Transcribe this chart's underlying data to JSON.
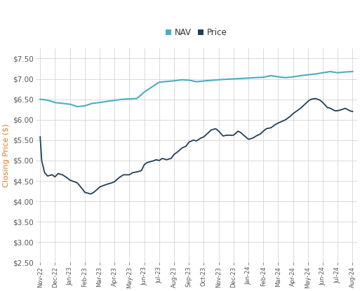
{
  "title": "",
  "ylabel": "Closing Price ($)",
  "nav_color": "#4BACC6",
  "price_color": "#1F3F5A",
  "background_color": "#FFFFFF",
  "grid_color": "#CCCCCC",
  "ylim": [
    2.5,
    7.75
  ],
  "yticks": [
    2.5,
    3.0,
    3.5,
    4.0,
    4.5,
    5.0,
    5.5,
    6.0,
    6.5,
    7.0,
    7.5
  ],
  "xtick_labels": [
    "Nov-22",
    "Dec-22",
    "Jan-23",
    "Feb-23",
    "Mar-23",
    "Apr-23",
    "May-23",
    "Jun-23",
    "Jul-23",
    "Aug-23",
    "Sep-23",
    "Oct-23",
    "Nov-23",
    "Dec-23",
    "Jan-24",
    "Feb-24",
    "Mar-24",
    "Apr-24",
    "May-24",
    "Jun-24",
    "Jul-24",
    "Aug-24"
  ],
  "nav_keypoints_x": [
    0,
    0.5,
    1.0,
    1.5,
    2.0,
    2.5,
    3.0,
    3.5,
    4.0,
    4.5,
    5.5,
    6.5,
    7.0,
    7.5,
    8.0,
    9.0,
    9.5,
    10.0,
    10.5,
    11.0,
    12.0,
    13.0,
    14.0,
    15.0,
    15.5,
    16.0,
    16.5,
    17.0,
    17.5,
    18.0,
    18.5,
    19.0,
    19.5,
    20.0,
    20.5,
    21.0
  ],
  "nav_keypoints_y": [
    6.5,
    6.48,
    6.42,
    6.4,
    6.38,
    6.32,
    6.34,
    6.4,
    6.42,
    6.45,
    6.5,
    6.52,
    6.68,
    6.8,
    6.92,
    6.95,
    6.98,
    6.97,
    6.93,
    6.95,
    6.98,
    7.0,
    7.02,
    7.04,
    7.08,
    7.05,
    7.03,
    7.05,
    7.08,
    7.1,
    7.12,
    7.15,
    7.18,
    7.15,
    7.17,
    7.18
  ],
  "price_keypoints_x": [
    0,
    0.1,
    0.3,
    0.5,
    0.8,
    1.0,
    1.2,
    1.5,
    1.8,
    2.0,
    2.3,
    2.5,
    2.8,
    3.0,
    3.2,
    3.4,
    3.6,
    3.8,
    4.0,
    4.2,
    4.5,
    4.8,
    5.0,
    5.3,
    5.6,
    6.0,
    6.2,
    6.5,
    6.8,
    7.0,
    7.2,
    7.5,
    7.8,
    8.0,
    8.2,
    8.5,
    8.8,
    9.0,
    9.2,
    9.5,
    9.8,
    10.0,
    10.3,
    10.5,
    10.8,
    11.0,
    11.3,
    11.5,
    11.8,
    12.0,
    12.3,
    12.5,
    12.8,
    13.0,
    13.3,
    13.5,
    13.8,
    14.0,
    14.3,
    14.5,
    14.8,
    15.0,
    15.2,
    15.5,
    15.8,
    16.0,
    16.2,
    16.5,
    16.8,
    17.0,
    17.2,
    17.5,
    17.8,
    18.0,
    18.2,
    18.5,
    18.8,
    19.0,
    19.3,
    19.5,
    19.8,
    20.0,
    20.3,
    20.5,
    20.8,
    21.0
  ],
  "price_keypoints_y": [
    5.58,
    5.0,
    4.7,
    4.62,
    4.65,
    4.6,
    4.68,
    4.65,
    4.58,
    4.52,
    4.48,
    4.45,
    4.32,
    4.22,
    4.2,
    4.18,
    4.22,
    4.28,
    4.35,
    4.38,
    4.42,
    4.45,
    4.48,
    4.58,
    4.65,
    4.65,
    4.7,
    4.72,
    4.75,
    4.9,
    4.95,
    4.98,
    5.02,
    5.0,
    5.05,
    5.02,
    5.05,
    5.15,
    5.2,
    5.3,
    5.35,
    5.45,
    5.5,
    5.48,
    5.55,
    5.58,
    5.68,
    5.75,
    5.78,
    5.72,
    5.6,
    5.62,
    5.62,
    5.62,
    5.72,
    5.68,
    5.58,
    5.52,
    5.55,
    5.6,
    5.65,
    5.72,
    5.78,
    5.8,
    5.88,
    5.92,
    5.95,
    6.0,
    6.08,
    6.15,
    6.2,
    6.28,
    6.38,
    6.45,
    6.5,
    6.52,
    6.48,
    6.42,
    6.3,
    6.28,
    6.22,
    6.22,
    6.25,
    6.28,
    6.22,
    6.2
  ]
}
